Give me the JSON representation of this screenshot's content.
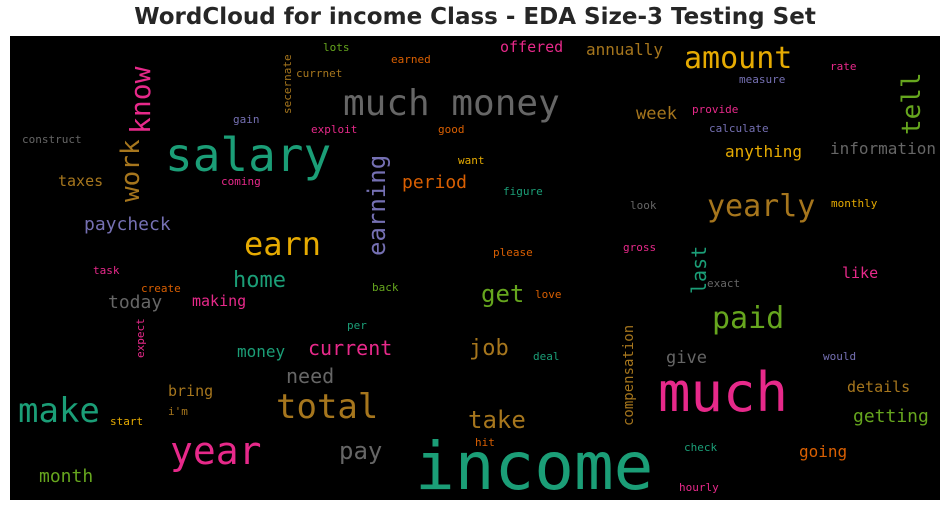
{
  "title": "WordCloud for income Class - EDA Size-3 Testing Set",
  "colors": {
    "teal": "#1b9e77",
    "orange": "#d95f02",
    "purple": "#7570b3",
    "pink": "#e7298a",
    "green": "#66a61e",
    "yellow": "#e6ab02",
    "brown": "#a6761d",
    "gray": "#666666"
  },
  "words": [
    {
      "text": "income",
      "color": "teal"
    },
    {
      "text": "much",
      "color": "pink"
    },
    {
      "text": "salary",
      "color": "teal"
    },
    {
      "text": "much money",
      "color": "gray"
    },
    {
      "text": "year",
      "color": "pink"
    },
    {
      "text": "make",
      "color": "teal"
    },
    {
      "text": "total",
      "color": "brown"
    },
    {
      "text": "earn",
      "color": "yellow"
    },
    {
      "text": "amount",
      "color": "yellow"
    },
    {
      "text": "yearly",
      "color": "brown"
    },
    {
      "text": "paid",
      "color": "green"
    },
    {
      "text": "know",
      "color": "pink"
    },
    {
      "text": "work",
      "color": "brown"
    },
    {
      "text": "tell",
      "color": "green"
    },
    {
      "text": "earning",
      "color": "purple"
    },
    {
      "text": "take",
      "color": "brown"
    },
    {
      "text": "get",
      "color": "green"
    },
    {
      "text": "job",
      "color": "brown"
    },
    {
      "text": "pay",
      "color": "gray"
    },
    {
      "text": "home",
      "color": "teal"
    },
    {
      "text": "last",
      "color": "teal"
    },
    {
      "text": "current",
      "color": "pink"
    },
    {
      "text": "paycheck",
      "color": "purple"
    },
    {
      "text": "need",
      "color": "gray"
    },
    {
      "text": "period",
      "color": "orange"
    },
    {
      "text": "today",
      "color": "gray"
    },
    {
      "text": "money",
      "color": "teal"
    },
    {
      "text": "month",
      "color": "green"
    },
    {
      "text": "getting",
      "color": "green"
    },
    {
      "text": "annually",
      "color": "brown"
    },
    {
      "text": "week",
      "color": "brown"
    },
    {
      "text": "information",
      "color": "gray"
    },
    {
      "text": "anything",
      "color": "yellow"
    },
    {
      "text": "going",
      "color": "orange"
    },
    {
      "text": "give",
      "color": "gray"
    },
    {
      "text": "offered",
      "color": "pink"
    },
    {
      "text": "taxes",
      "color": "brown"
    },
    {
      "text": "making",
      "color": "pink"
    },
    {
      "text": "bring",
      "color": "brown"
    },
    {
      "text": "details",
      "color": "brown"
    },
    {
      "text": "like",
      "color": "pink"
    },
    {
      "text": "compensation",
      "color": "brown"
    },
    {
      "text": "construct",
      "color": "gray"
    },
    {
      "text": "gain",
      "color": "purple"
    },
    {
      "text": "exploit",
      "color": "pink"
    },
    {
      "text": "good",
      "color": "orange"
    },
    {
      "text": "lots",
      "color": "green"
    },
    {
      "text": "earned",
      "color": "orange"
    },
    {
      "text": "currnet",
      "color": "brown"
    },
    {
      "text": "secernate",
      "color": "brown"
    },
    {
      "text": "measure",
      "color": "purple"
    },
    {
      "text": "rate",
      "color": "pink"
    },
    {
      "text": "provide",
      "color": "pink"
    },
    {
      "text": "calculate",
      "color": "purple"
    },
    {
      "text": "want",
      "color": "yellow"
    },
    {
      "text": "coming",
      "color": "pink"
    },
    {
      "text": "figure",
      "color": "teal"
    },
    {
      "text": "look",
      "color": "gray"
    },
    {
      "text": "monthly",
      "color": "yellow"
    },
    {
      "text": "please",
      "color": "orange"
    },
    {
      "text": "gross",
      "color": "pink"
    },
    {
      "text": "task",
      "color": "pink"
    },
    {
      "text": "create",
      "color": "orange"
    },
    {
      "text": "back",
      "color": "green"
    },
    {
      "text": "love",
      "color": "orange"
    },
    {
      "text": "exact",
      "color": "gray"
    },
    {
      "text": "per",
      "color": "teal"
    },
    {
      "text": "expect",
      "color": "pink"
    },
    {
      "text": "deal",
      "color": "teal"
    },
    {
      "text": "would",
      "color": "purple"
    },
    {
      "text": "i'm",
      "color": "brown"
    },
    {
      "text": "start",
      "color": "yellow"
    },
    {
      "text": "hit",
      "color": "orange"
    },
    {
      "text": "check",
      "color": "teal"
    },
    {
      "text": "hourly",
      "color": "pink"
    }
  ]
}
